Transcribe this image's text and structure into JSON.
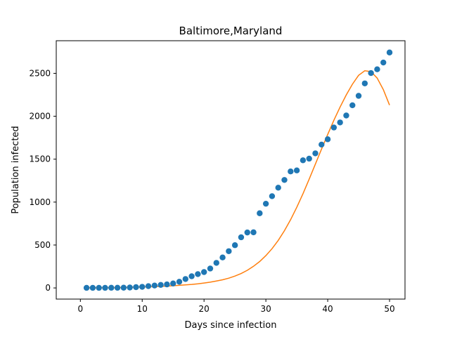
{
  "chart_data": {
    "type": "scatter",
    "title": "Baltimore,Maryland",
    "xlabel": "Days since infection",
    "ylabel": "Population infected",
    "xlim": [
      -3.9,
      52.5
    ],
    "ylim": [
      -130,
      2880
    ],
    "xticks": [
      0,
      10,
      20,
      30,
      40,
      50
    ],
    "yticks": [
      0,
      500,
      1000,
      1500,
      2000,
      2500
    ],
    "grid": false,
    "series": [
      {
        "kind": "scatter",
        "color": "#1f77b4",
        "x": [
          1,
          2,
          3,
          4,
          5,
          6,
          7,
          8,
          9,
          10,
          11,
          12,
          13,
          14,
          15,
          16,
          17,
          18,
          19,
          20,
          21,
          22,
          23,
          24,
          25,
          26,
          27,
          28,
          29,
          30,
          31,
          32,
          33,
          34,
          35,
          36,
          37,
          38,
          39,
          40,
          41,
          42,
          43,
          44,
          45,
          46,
          47,
          48,
          49,
          50
        ],
        "y": [
          1,
          1,
          1,
          1,
          2,
          2,
          3,
          5,
          9,
          13,
          21,
          28,
          35,
          41,
          52,
          72,
          104,
          136,
          161,
          185,
          226,
          292,
          355,
          428,
          498,
          590,
          646,
          648,
          870,
          981,
          1069,
          1168,
          1258,
          1357,
          1369,
          1487,
          1506,
          1568,
          1670,
          1732,
          1869,
          1928,
          2009,
          2128,
          2238,
          2383,
          2503,
          2547,
          2626,
          2743
        ]
      },
      {
        "kind": "line",
        "color": "#ff7f0e",
        "x": [
          1,
          2,
          3,
          4,
          5,
          6,
          7,
          8,
          9,
          10,
          11,
          12,
          13,
          14,
          15,
          16,
          17,
          18,
          19,
          20,
          21,
          22,
          23,
          24,
          25,
          26,
          27,
          28,
          29,
          30,
          31,
          32,
          33,
          34,
          35,
          36,
          37,
          38,
          39,
          40,
          41,
          42,
          43,
          44,
          45,
          46,
          47,
          48,
          49,
          50
        ],
        "y": [
          2,
          2,
          3,
          3,
          4,
          5,
          6,
          7,
          9,
          11,
          13,
          15,
          18,
          21,
          25,
          30,
          35,
          41,
          48,
          57,
          67,
          80,
          95,
          114,
          138,
          168,
          205,
          252,
          308,
          376,
          457,
          554,
          667,
          795,
          940,
          1098,
          1267,
          1442,
          1618,
          1789,
          1954,
          2108,
          2249,
          2373,
          2477,
          2530,
          2520,
          2445,
          2310,
          2130
        ]
      }
    ]
  }
}
